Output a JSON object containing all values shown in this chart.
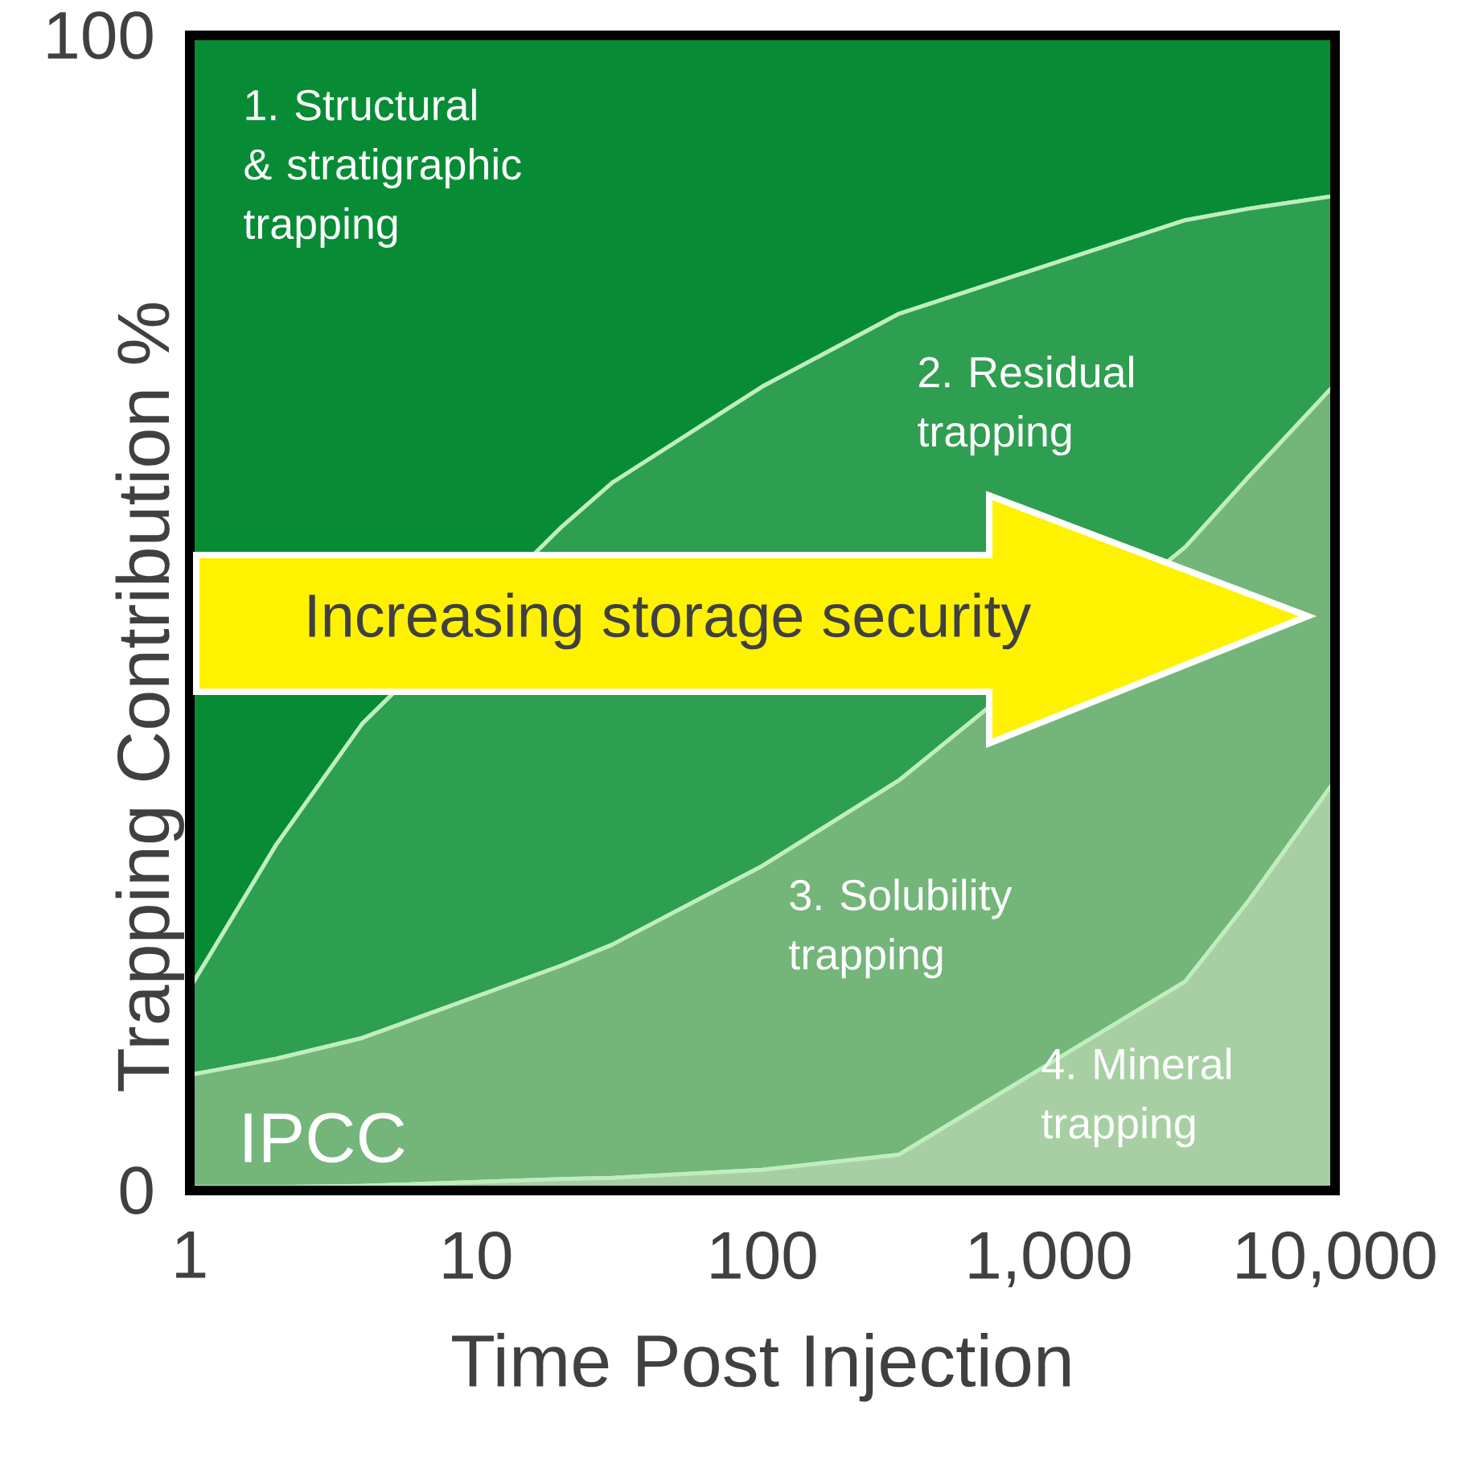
{
  "chart_data": {
    "type": "area",
    "stacked": true,
    "xlabel": "Time Post Injection",
    "ylabel": "Trapping Contribution %",
    "log": "x",
    "x": [
      1,
      2,
      4,
      20,
      30,
      100,
      300,
      3000,
      5000,
      10000
    ],
    "xlim": [
      1,
      10000
    ],
    "ylim": [
      0,
      100
    ],
    "xticks": [
      1,
      10,
      100,
      {
        "value": 1000,
        "label": "1,000"
      },
      {
        "value": 10000,
        "label": "10,000"
      }
    ],
    "yticks": [
      0,
      100
    ],
    "annotations": [
      "Increasing storage security",
      "IPCC"
    ],
    "series": [
      {
        "name": "4. Mineral trapping",
        "color": "#a8cfa3",
        "values": [
          0.3,
          0.3,
          0.4,
          1.0,
          1.1,
          1.8,
          3.1,
          18.1,
          25.1,
          35.5
        ]
      },
      {
        "name": "3. Solubility trapping",
        "color": "#74b57a",
        "values": [
          9.7,
          11.1,
          12.8,
          18.5,
          20.2,
          26.3,
          32.4,
          37.6,
          36.7,
          34.3
        ]
      },
      {
        "name": "2. Residual trapping",
        "color": "#2e9e50",
        "values": [
          7.5,
          18.5,
          27.2,
          38.0,
          40.0,
          41.5,
          40.4,
          28.3,
          23.2,
          16.3
        ]
      },
      {
        "name": "1. Structural & stratigraphic trapping",
        "color": "#078c35",
        "values": [
          82.5,
          70.1,
          59.6,
          42.5,
          38.7,
          30.4,
          24.1,
          16.0,
          15.0,
          13.9
        ]
      }
    ]
  }
}
